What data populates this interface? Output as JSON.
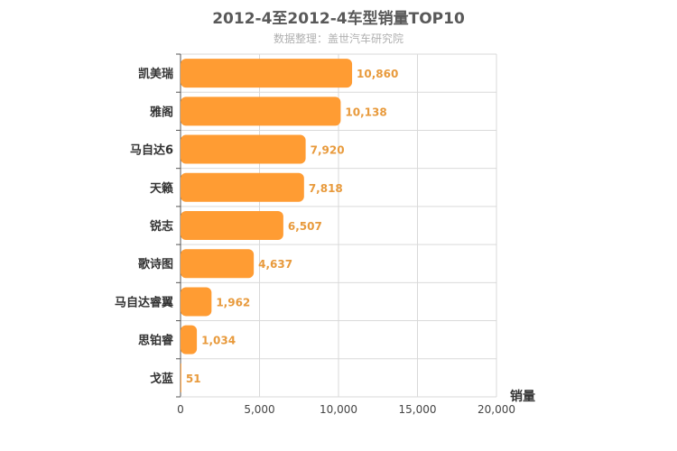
{
  "header": {
    "title": "2012-4至2012-4车型销量TOP10",
    "subtitle": "数据整理：盖世汽车研究院"
  },
  "colors": {
    "bar": "#ff9c33",
    "data_label": "#e89a3c",
    "grid": "#d9d9d9",
    "axis": "#555555"
  },
  "chart_data": {
    "type": "bar",
    "orientation": "horizontal",
    "title": "2012-4至2012-4车型销量TOP10",
    "subtitle": "数据整理：盖世汽车研究院",
    "categories": [
      "凯美瑞",
      "雅阁",
      "马自达6",
      "天籁",
      "锐志",
      "歌诗图",
      "马自达睿翼",
      "思铂睿",
      "戈蓝"
    ],
    "values": [
      10860,
      10138,
      7920,
      7818,
      6507,
      4637,
      1962,
      1034,
      51
    ],
    "value_labels": [
      "10,860",
      "10,138",
      "7,920",
      "7,818",
      "6,507",
      "4,637",
      "1,962",
      "1,034",
      "51"
    ],
    "xlabel": "销量",
    "ylabel": "",
    "xlim": [
      0,
      20000
    ],
    "x_ticks": [
      0,
      5000,
      10000,
      15000,
      20000
    ],
    "x_tick_labels": [
      "0",
      "5,000",
      "10,000",
      "15,000",
      "20,000"
    ],
    "grid": true
  }
}
